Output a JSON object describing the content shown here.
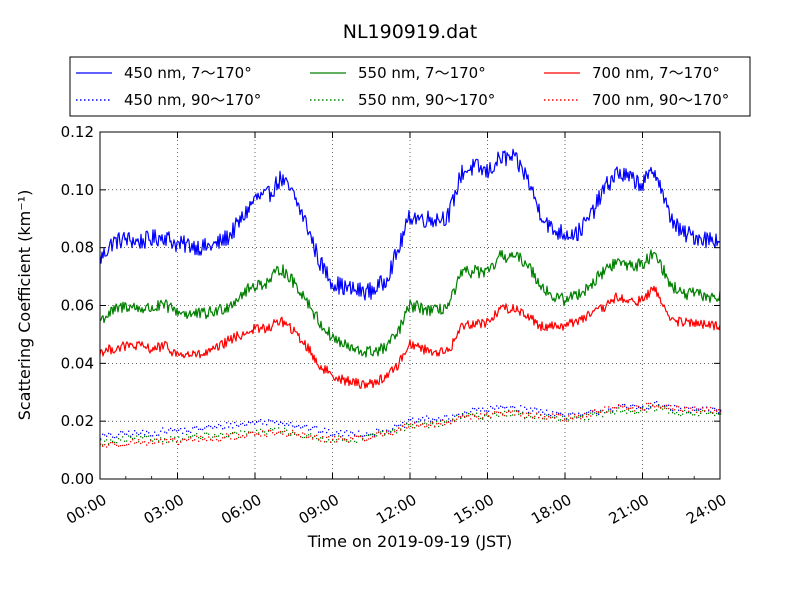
{
  "chart_data": {
    "type": "line",
    "title": "NL190919.dat",
    "xlabel": "Time on 2019-09-19 (JST)",
    "ylabel": "Scattering Coefficient (km⁻¹)",
    "xlim": [
      "00:00",
      "24:00"
    ],
    "ylim": [
      0.0,
      0.12
    ],
    "grid": true,
    "legend_placement": "top, above plot, 3 columns",
    "x_ticks": [
      "00:00",
      "03:00",
      "06:00",
      "09:00",
      "12:00",
      "15:00",
      "18:00",
      "21:00",
      "24:00"
    ],
    "y_ticks": [
      "0.00",
      "0.02",
      "0.04",
      "0.06",
      "0.08",
      "0.10",
      "0.12"
    ],
    "x_hours": [
      0,
      0.5,
      1,
      1.5,
      2,
      2.5,
      3,
      3.5,
      4,
      4.5,
      5,
      5.5,
      6,
      6.5,
      7,
      7.5,
      8,
      8.5,
      9,
      9.5,
      10,
      10.5,
      11,
      11.5,
      12,
      12.5,
      13,
      13.5,
      14,
      14.5,
      15,
      15.5,
      16,
      16.5,
      17,
      17.5,
      18,
      18.5,
      19,
      19.5,
      20,
      20.5,
      21,
      21.5,
      22,
      22.5,
      23,
      23.5,
      24
    ],
    "series": [
      {
        "name": "450 nm, 7～170°",
        "color": "#0000ff",
        "style": "solid",
        "values": [
          0.076,
          0.082,
          0.083,
          0.082,
          0.083,
          0.084,
          0.081,
          0.081,
          0.08,
          0.081,
          0.084,
          0.09,
          0.097,
          0.098,
          0.104,
          0.098,
          0.088,
          0.075,
          0.068,
          0.066,
          0.065,
          0.065,
          0.068,
          0.078,
          0.091,
          0.09,
          0.09,
          0.091,
          0.106,
          0.108,
          0.106,
          0.111,
          0.111,
          0.105,
          0.093,
          0.086,
          0.085,
          0.085,
          0.091,
          0.1,
          0.106,
          0.104,
          0.102,
          0.107,
          0.092,
          0.085,
          0.084,
          0.083,
          0.083
        ]
      },
      {
        "name": "450 nm, 90～170°",
        "color": "#0000ff",
        "style": "dotted",
        "values": [
          0.015,
          0.015,
          0.016,
          0.016,
          0.016,
          0.017,
          0.017,
          0.017,
          0.018,
          0.018,
          0.019,
          0.019,
          0.02,
          0.02,
          0.02,
          0.019,
          0.018,
          0.017,
          0.016,
          0.016,
          0.016,
          0.016,
          0.017,
          0.018,
          0.02,
          0.021,
          0.021,
          0.021,
          0.023,
          0.024,
          0.024,
          0.025,
          0.025,
          0.024,
          0.024,
          0.023,
          0.022,
          0.022,
          0.023,
          0.024,
          0.025,
          0.025,
          0.025,
          0.026,
          0.025,
          0.024,
          0.024,
          0.024,
          0.024
        ]
      },
      {
        "name": "550 nm, 7～170°",
        "color": "#008000",
        "style": "solid",
        "values": [
          0.055,
          0.058,
          0.06,
          0.059,
          0.059,
          0.06,
          0.058,
          0.057,
          0.057,
          0.058,
          0.06,
          0.064,
          0.067,
          0.068,
          0.073,
          0.068,
          0.062,
          0.054,
          0.049,
          0.046,
          0.044,
          0.044,
          0.045,
          0.05,
          0.06,
          0.059,
          0.058,
          0.06,
          0.071,
          0.072,
          0.071,
          0.077,
          0.077,
          0.075,
          0.068,
          0.063,
          0.062,
          0.064,
          0.067,
          0.072,
          0.075,
          0.074,
          0.074,
          0.079,
          0.068,
          0.064,
          0.064,
          0.063,
          0.063
        ]
      },
      {
        "name": "550 nm, 90～170°",
        "color": "#008000",
        "style": "dotted",
        "values": [
          0.013,
          0.013,
          0.014,
          0.014,
          0.014,
          0.014,
          0.014,
          0.015,
          0.015,
          0.015,
          0.015,
          0.016,
          0.016,
          0.017,
          0.017,
          0.016,
          0.015,
          0.014,
          0.014,
          0.014,
          0.014,
          0.015,
          0.016,
          0.017,
          0.019,
          0.019,
          0.019,
          0.02,
          0.022,
          0.022,
          0.022,
          0.023,
          0.023,
          0.022,
          0.022,
          0.021,
          0.021,
          0.021,
          0.022,
          0.023,
          0.024,
          0.024,
          0.024,
          0.025,
          0.024,
          0.023,
          0.023,
          0.023,
          0.023
        ]
      },
      {
        "name": "700 nm, 7～170°",
        "color": "#ff0000",
        "style": "solid",
        "values": [
          0.044,
          0.045,
          0.046,
          0.046,
          0.045,
          0.046,
          0.043,
          0.043,
          0.043,
          0.045,
          0.048,
          0.05,
          0.052,
          0.052,
          0.055,
          0.051,
          0.046,
          0.039,
          0.036,
          0.034,
          0.033,
          0.033,
          0.035,
          0.039,
          0.047,
          0.045,
          0.044,
          0.044,
          0.053,
          0.054,
          0.054,
          0.059,
          0.059,
          0.057,
          0.053,
          0.053,
          0.053,
          0.055,
          0.057,
          0.059,
          0.063,
          0.061,
          0.062,
          0.066,
          0.056,
          0.054,
          0.054,
          0.053,
          0.053
        ]
      },
      {
        "name": "700 nm, 90～170°",
        "color": "#ff0000",
        "style": "dotted",
        "values": [
          0.012,
          0.012,
          0.013,
          0.013,
          0.013,
          0.013,
          0.013,
          0.014,
          0.014,
          0.014,
          0.015,
          0.015,
          0.016,
          0.016,
          0.016,
          0.016,
          0.015,
          0.014,
          0.014,
          0.014,
          0.014,
          0.015,
          0.016,
          0.017,
          0.019,
          0.019,
          0.019,
          0.02,
          0.022,
          0.022,
          0.022,
          0.023,
          0.023,
          0.022,
          0.022,
          0.022,
          0.021,
          0.022,
          0.023,
          0.024,
          0.025,
          0.024,
          0.025,
          0.026,
          0.025,
          0.024,
          0.024,
          0.024,
          0.024
        ]
      }
    ]
  }
}
